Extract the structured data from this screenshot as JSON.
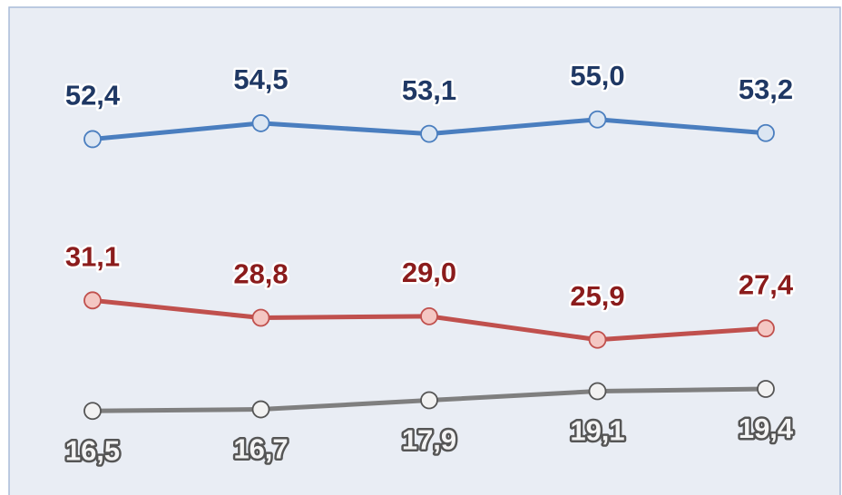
{
  "chart_data": {
    "type": "line",
    "categories": [
      null,
      null,
      null,
      null,
      null
    ],
    "series": [
      {
        "color": "#4a7ebf",
        "label_fill": "#1f3864",
        "label_stroke": "#ffffff",
        "label_position": "above",
        "values": [
          52.4,
          54.5,
          53.1,
          55.0,
          53.2
        ],
        "value_labels": [
          "52,4",
          "54,5",
          "53,1",
          "55,0",
          "53,2"
        ]
      },
      {
        "color": "#c0504d",
        "label_fill": "#8b1c1c",
        "label_stroke": "#ffffff",
        "label_position": "above",
        "values": [
          31.1,
          28.8,
          29.0,
          25.9,
          27.4
        ],
        "value_labels": [
          "31,1",
          "28,8",
          "29,0",
          "25,9",
          "27,4"
        ]
      },
      {
        "color": "#7f7f7f",
        "label_fill": "#f4f4f4",
        "label_stroke": "#555555",
        "label_position": "below",
        "values": [
          16.5,
          16.7,
          17.9,
          19.1,
          19.4
        ],
        "value_labels": [
          "16,5",
          "16,7",
          "17,9",
          "19,1",
          "19,4"
        ]
      }
    ]
  }
}
